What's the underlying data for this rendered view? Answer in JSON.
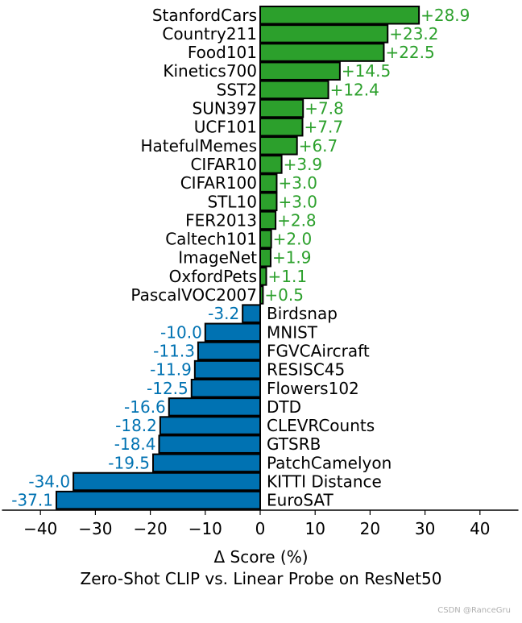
{
  "chart_data": {
    "type": "bar",
    "orientation": "horizontal",
    "xlabel": "Δ Score (%)",
    "subtitle": "Zero-Shot CLIP vs. Linear Probe on ResNet50",
    "xlim": [
      -47,
      47
    ],
    "xticks": [
      -40,
      -30,
      -20,
      -10,
      0,
      10,
      20,
      30,
      40
    ],
    "xtick_labels": [
      "−40",
      "−30",
      "−20",
      "−10",
      "0",
      "10",
      "20",
      "30",
      "40"
    ],
    "categories": [
      "StanfordCars",
      "Country211",
      "Food101",
      "Kinetics700",
      "SST2",
      "SUN397",
      "UCF101",
      "HatefulMemes",
      "CIFAR10",
      "CIFAR100",
      "STL10",
      "FER2013",
      "Caltech101",
      "ImageNet",
      "OxfordPets",
      "PascalVOC2007",
      "Birdsnap",
      "MNIST",
      "FGVCAircraft",
      "RESISC45",
      "Flowers102",
      "DTD",
      "CLEVRCounts",
      "GTSRB",
      "PatchCamelyon",
      "KITTI Distance",
      "EuroSAT"
    ],
    "values": [
      28.9,
      23.2,
      22.5,
      14.5,
      12.4,
      7.8,
      7.7,
      6.7,
      3.9,
      3.0,
      3.0,
      2.8,
      2.0,
      1.9,
      1.1,
      0.5,
      -3.2,
      -10.0,
      -11.3,
      -11.9,
      -12.5,
      -16.6,
      -18.2,
      -18.4,
      -19.5,
      -34.0,
      -37.1
    ],
    "value_labels": [
      "+28.9",
      "+23.2",
      "+22.5",
      "+14.5",
      "+12.4",
      "+7.8",
      "+7.7",
      "+6.7",
      "+3.9",
      "+3.0",
      "+3.0",
      "+2.8",
      "+2.0",
      "+1.9",
      "+1.1",
      "+0.5",
      "-3.2",
      "-10.0",
      "-11.3",
      "-11.9",
      "-12.5",
      "-16.6",
      "-18.2",
      "-18.4",
      "-19.5",
      "-34.0",
      "-37.1"
    ],
    "colors": {
      "positive_bar": "#2ca02c",
      "positive_text": "#2ca02c",
      "negative_bar": "#0072b2",
      "negative_text": "#0072b2"
    }
  },
  "watermark": "CSDN @RanceGru"
}
